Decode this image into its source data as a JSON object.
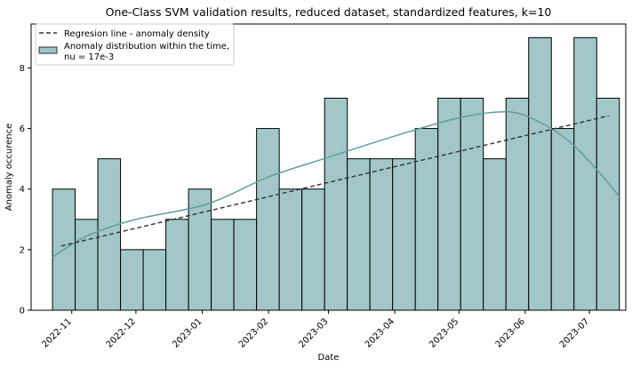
{
  "chart_data": {
    "type": "bar",
    "title": "One-Class SVM validation results, reduced dataset, standardized features, k=10",
    "xlabel": "Date",
    "ylabel": "Anomaly occurence",
    "x_ticks": [
      "2022-11",
      "2022-12",
      "2023-01",
      "2023-02",
      "2023-03",
      "2023-04",
      "2023-05",
      "2023-06",
      "2023-07"
    ],
    "y_ticks": [
      "0",
      "2",
      "4",
      "6",
      "8"
    ],
    "ylim": [
      0,
      9.45
    ],
    "xlim": [
      "2022-10-13",
      "2023-07-18"
    ],
    "grid": false,
    "legend_position": "top-left",
    "bins": {
      "start": "2022-10-23",
      "end": "2023-07-15",
      "counts": [
        4,
        3,
        5,
        2,
        2,
        3,
        4,
        3,
        3,
        6,
        4,
        4,
        7,
        5,
        5,
        5,
        6,
        7,
        7,
        5,
        7,
        9,
        6,
        9,
        7
      ]
    },
    "series": [
      {
        "name": "Anomaly distribution within the time,\nnu = 17e-3",
        "kind": "histogram",
        "color": "#a3c7c8",
        "edge_color": "#000000"
      },
      {
        "name": "KDE",
        "kind": "kde-line",
        "color": "#5f9ea0",
        "x": [
          "2022-10-23",
          "2022-11-08",
          "2022-12-01",
          "2023-01-03",
          "2023-02-01",
          "2023-03-01",
          "2023-04-01",
          "2023-05-01",
          "2023-05-24",
          "2023-06-08",
          "2023-06-22",
          "2023-07-05",
          "2023-07-15"
        ],
        "values": [
          1.75,
          2.45,
          3.0,
          3.5,
          4.4,
          5.05,
          5.75,
          6.35,
          6.55,
          6.2,
          5.55,
          4.6,
          3.75
        ]
      },
      {
        "name": "Regresion line - anomaly density",
        "kind": "regression-line",
        "color": "#333333",
        "x": [
          "2022-10-27",
          "2023-07-10"
        ],
        "values": [
          2.12,
          6.42
        ]
      }
    ],
    "legend": [
      {
        "label": "Regresion line - anomaly density",
        "type": "dashed-line",
        "color": "#333333"
      },
      {
        "label": "Anomaly distribution within the time,\nnu = 17e-3",
        "type": "patch",
        "color": "#a3c7c8"
      }
    ]
  }
}
